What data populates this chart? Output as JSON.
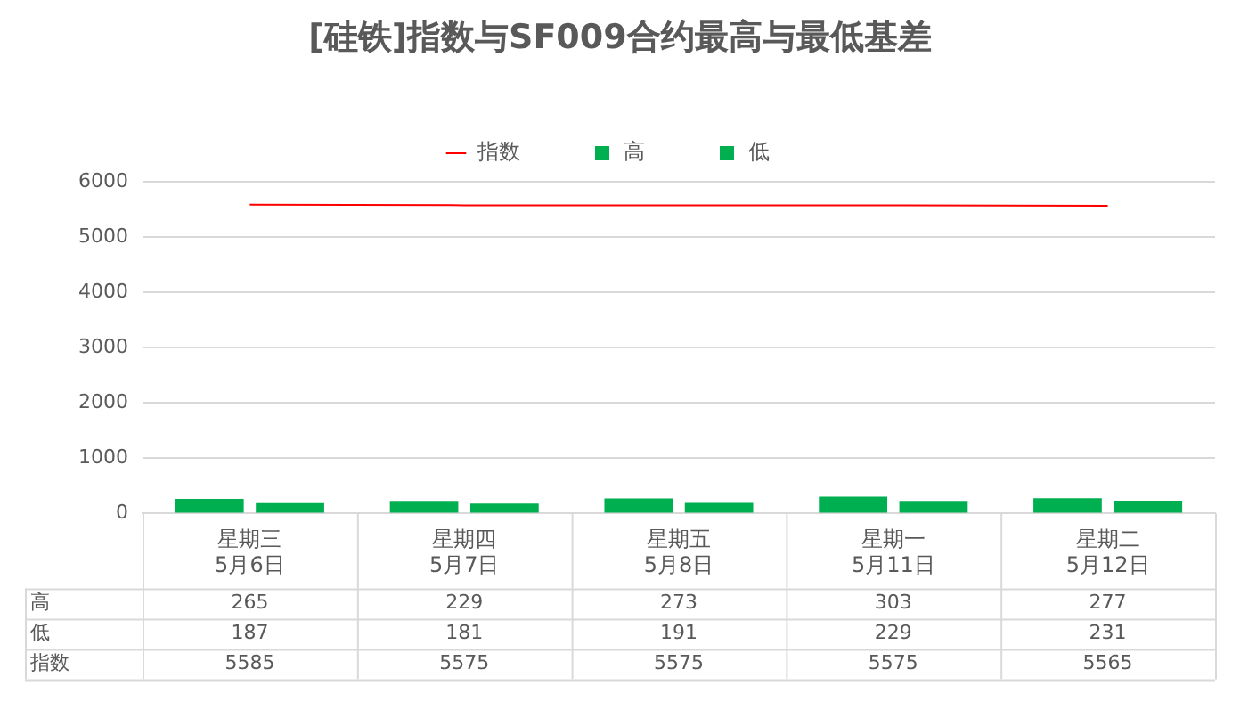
{
  "chart_data": {
    "type": "bar",
    "title": "[硅铁]指数与SF009合约最高与最低基差",
    "categories": [
      "星期三\n5月6日",
      "星期四\n5月7日",
      "星期五\n5月8日",
      "星期一\n5月11日",
      "星期二\n5月12日"
    ],
    "series": [
      {
        "name": "高",
        "color": "#00b050",
        "values": [
          265,
          229,
          273,
          303,
          277
        ]
      },
      {
        "name": "低",
        "color": "#00b050",
        "values": [
          187,
          181,
          191,
          229,
          231
        ]
      },
      {
        "name": "指数",
        "type": "line",
        "color": "#ff0000",
        "values": [
          5585,
          5575,
          5575,
          5575,
          5565
        ]
      }
    ],
    "ylim": [
      0,
      6000
    ],
    "yticks": [
      0,
      1000,
      2000,
      3000,
      4000,
      5000,
      6000
    ],
    "grid": "y",
    "legend": "top",
    "data_labels": true
  }
}
